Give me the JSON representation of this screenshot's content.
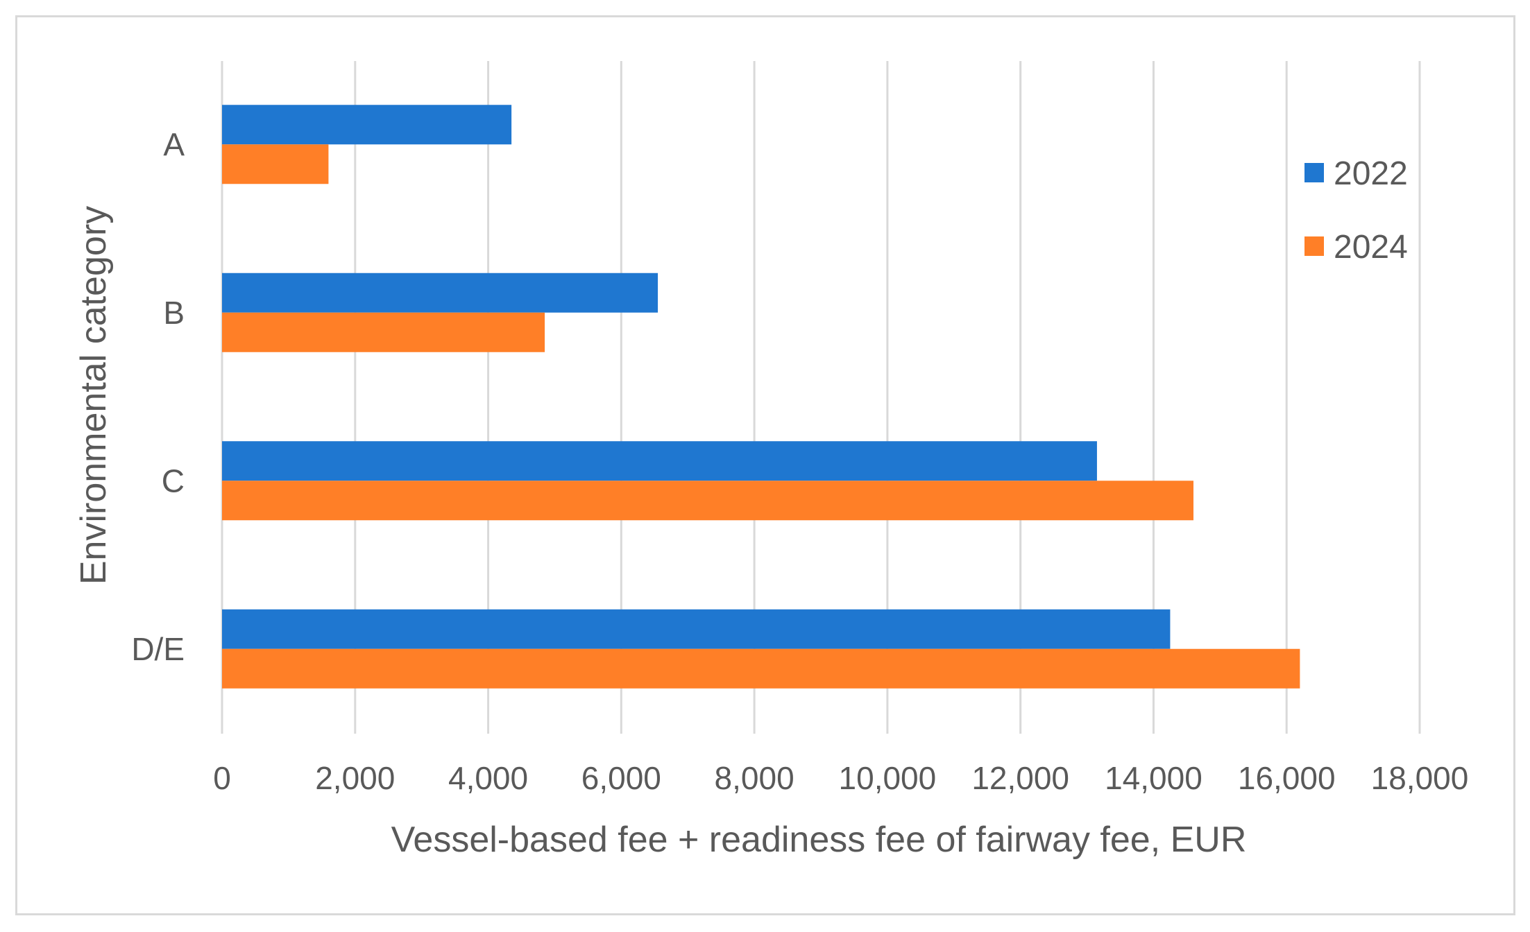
{
  "chart_data": {
    "type": "bar",
    "orientation": "horizontal",
    "title": "",
    "categories": [
      "A",
      "B",
      "C",
      "D/E"
    ],
    "series": [
      {
        "name": "2022",
        "color": "#1f77d0",
        "values": [
          4350,
          6550,
          13150,
          14250
        ]
      },
      {
        "name": "2024",
        "color": "#ff7f27",
        "values": [
          1600,
          4850,
          14600,
          16200
        ]
      }
    ],
    "xlabel": "Vessel-based fee + readiness fee of fairway fee, EUR",
    "ylabel": "Environmental category",
    "xlim": [
      0,
      18000
    ],
    "xticks": [
      "0",
      "2,000",
      "4,000",
      "6,000",
      "8,000",
      "10,000",
      "12,000",
      "14,000",
      "16,000",
      "18,000"
    ],
    "grid": true,
    "legend_position": "right"
  }
}
